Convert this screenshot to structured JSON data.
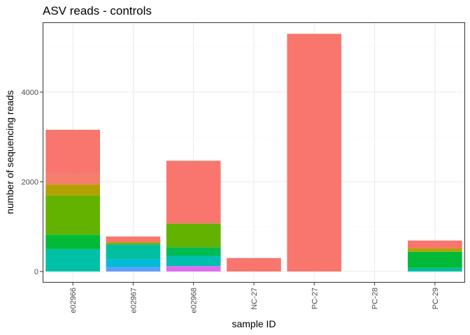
{
  "chart_data": {
    "type": "bar",
    "stacked": true,
    "title": "ASV reads - controls",
    "xlabel": "sample ID",
    "ylabel": "number of sequencing reads",
    "ylim": [
      0,
      5630
    ],
    "yticks": [
      0,
      2000,
      4000
    ],
    "grid": true,
    "legend": "none",
    "categories": [
      "e02966",
      "e02967",
      "e02968",
      "NC-27",
      "PC-27",
      "PC-28",
      "PC-29"
    ],
    "stacks": [
      [
        {
          "value": 500,
          "color": "#00C1A7"
        },
        {
          "value": 320,
          "color": "#00BA38"
        },
        {
          "value": 880,
          "color": "#64B200"
        },
        {
          "value": 240,
          "color": "#B4A000"
        },
        {
          "value": 230,
          "color": "#F47F6B"
        },
        {
          "value": 990,
          "color": "#F8766D"
        }
      ],
      [
        {
          "value": 100,
          "color": "#619CFF"
        },
        {
          "value": 170,
          "color": "#00BCD8"
        },
        {
          "value": 330,
          "color": "#00BFA0"
        },
        {
          "value": 50,
          "color": "#7CAE00"
        },
        {
          "value": 130,
          "color": "#F8766D"
        }
      ],
      [
        {
          "value": 120,
          "color": "#E06CF2"
        },
        {
          "value": 230,
          "color": "#00BFAE"
        },
        {
          "value": 190,
          "color": "#00BA52"
        },
        {
          "value": 530,
          "color": "#64B200"
        },
        {
          "value": 1400,
          "color": "#F8766D"
        }
      ],
      [
        {
          "value": 300,
          "color": "#F8766D"
        }
      ],
      [
        {
          "value": 5300,
          "color": "#F8766D"
        }
      ],
      [],
      [
        {
          "value": 80,
          "color": "#00BFA0"
        },
        {
          "value": 360,
          "color": "#00BA38"
        },
        {
          "value": 80,
          "color": "#B4A000"
        },
        {
          "value": 170,
          "color": "#F8766D"
        }
      ]
    ],
    "colors": {
      "panel_border": "#333333",
      "grid_major": "#EBEBEB",
      "grid_minor": "#F5F5F5",
      "tick": "#333333"
    }
  }
}
